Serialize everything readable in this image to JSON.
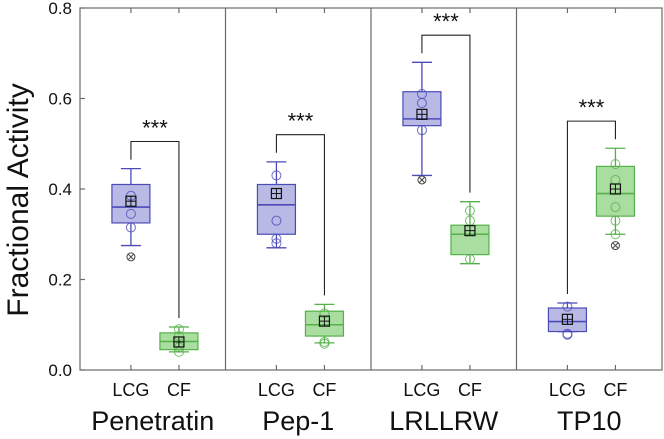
{
  "chart_data": {
    "type": "box",
    "ylabel": "Fractional Activity",
    "ylim": [
      0.0,
      0.8
    ],
    "yticks": [
      "0.0",
      "0.2",
      "0.4",
      "0.6",
      "0.8"
    ],
    "series_names": [
      "LCG",
      "CF"
    ],
    "colors": {
      "LCG": {
        "fill": "#b9b9e6",
        "stroke": "#4b4bb8"
      },
      "CF": {
        "fill": "#a9dea0",
        "stroke": "#55b04a"
      }
    },
    "groups": [
      {
        "name": "Penetratin",
        "significance": "***",
        "boxes": [
          {
            "series": "LCG",
            "whisker_low": 0.275,
            "q1": 0.325,
            "median": 0.36,
            "q3": 0.41,
            "whisker_high": 0.445,
            "mean": 0.373,
            "outliers": [
              0.25
            ],
            "points": [
              0.315,
              0.345,
              0.385
            ]
          },
          {
            "series": "CF",
            "whisker_low": 0.04,
            "q1": 0.045,
            "median": 0.063,
            "q3": 0.082,
            "whisker_high": 0.095,
            "mean": 0.062,
            "outliers": [],
            "points": [
              0.04,
              0.05,
              0.075,
              0.09
            ]
          }
        ]
      },
      {
        "name": "Pep-1",
        "significance": "***",
        "boxes": [
          {
            "series": "LCG",
            "whisker_low": 0.27,
            "q1": 0.3,
            "median": 0.365,
            "q3": 0.41,
            "whisker_high": 0.46,
            "mean": 0.39,
            "outliers": [],
            "points": [
              0.28,
              0.29,
              0.33,
              0.43
            ]
          },
          {
            "series": "CF",
            "whisker_low": 0.06,
            "q1": 0.075,
            "median": 0.1,
            "q3": 0.13,
            "whisker_high": 0.145,
            "mean": 0.108,
            "outliers": [],
            "points": [
              0.058,
              0.062,
              0.125
            ]
          }
        ]
      },
      {
        "name": "LRLLRW",
        "significance": "***",
        "boxes": [
          {
            "series": "LCG",
            "whisker_low": 0.43,
            "q1": 0.54,
            "median": 0.555,
            "q3": 0.615,
            "whisker_high": 0.68,
            "mean": 0.565,
            "outliers": [
              0.42
            ],
            "points": [
              0.53,
              0.59,
              0.61
            ]
          },
          {
            "series": "CF",
            "whisker_low": 0.235,
            "q1": 0.255,
            "median": 0.3,
            "q3": 0.32,
            "whisker_high": 0.372,
            "mean": 0.308,
            "outliers": [],
            "points": [
              0.245,
              0.33,
              0.352
            ]
          }
        ]
      },
      {
        "name": "TP10",
        "significance": "***",
        "boxes": [
          {
            "series": "LCG",
            "whisker_low": 0.085,
            "q1": 0.085,
            "median": 0.107,
            "q3": 0.137,
            "whisker_high": 0.148,
            "mean": 0.112,
            "outliers": [],
            "points": [
              0.078,
              0.08,
              0.14
            ]
          },
          {
            "series": "CF",
            "whisker_low": 0.3,
            "q1": 0.34,
            "median": 0.39,
            "q3": 0.45,
            "whisker_high": 0.49,
            "mean": 0.4,
            "outliers": [
              0.275
            ],
            "points": [
              0.3,
              0.33,
              0.36,
              0.42,
              0.455
            ]
          }
        ]
      }
    ]
  }
}
